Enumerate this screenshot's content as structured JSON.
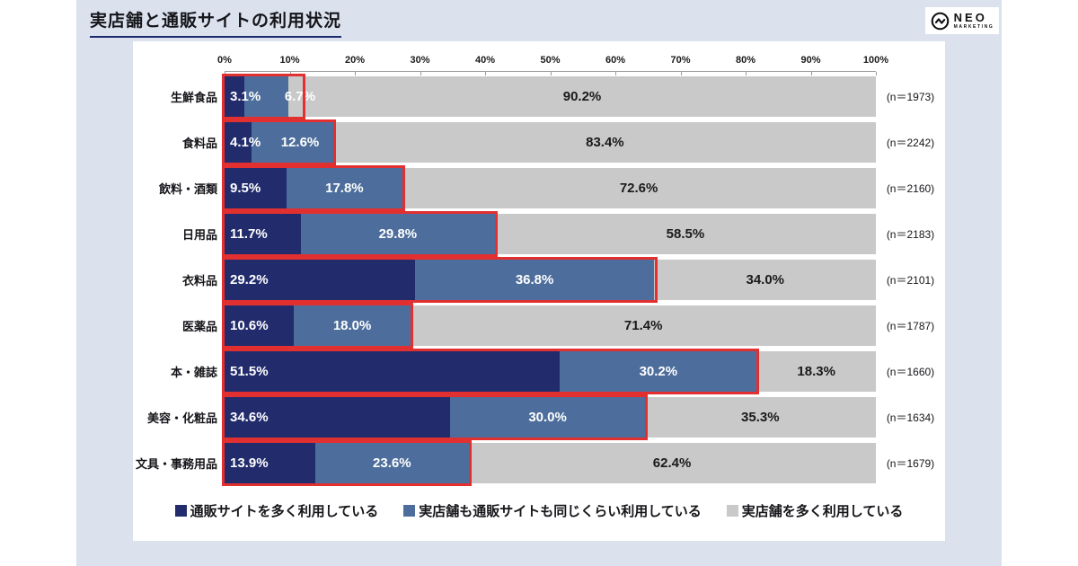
{
  "page": {
    "title": "実店舗と通販サイトの利用状況"
  },
  "logo": {
    "name": "NEO",
    "sub": "MARKETING"
  },
  "colors": {
    "panel_bg": "#dbe2ee",
    "card_bg": "#ffffff",
    "title_underline": "#1e2a6e",
    "highlight_red": "#e23030"
  },
  "chart_data": {
    "type": "bar",
    "stacked": true,
    "orientation": "horizontal",
    "title": "実店舗と通販サイトの利用状況",
    "axis": {
      "min": 0,
      "max": 100,
      "ticks": [
        "0%",
        "10%",
        "20%",
        "30%",
        "40%",
        "50%",
        "60%",
        "70%",
        "80%",
        "90%",
        "100%"
      ]
    },
    "categories": [
      "生鮮食品",
      "食料品",
      "飲料・酒類",
      "日用品",
      "衣料品",
      "医薬品",
      "本・雑誌",
      "美容・化粧品",
      "文具・事務用品"
    ],
    "n_labels": [
      "(n＝1973)",
      "(n＝2242)",
      "(n＝2160)",
      "(n＝2183)",
      "(n＝2101)",
      "(n＝1787)",
      "(n＝1660)",
      "(n＝1634)",
      "(n＝1679)"
    ],
    "series": [
      {
        "name": "通販サイトを多く利用している",
        "color": "#222c6d",
        "values": [
          3.1,
          4.1,
          9.5,
          11.7,
          29.2,
          10.6,
          51.5,
          34.6,
          13.9
        ]
      },
      {
        "name": "実店舗も通販サイトも同じくらい利用している",
        "color": "#4d6e9c",
        "values": [
          6.7,
          12.6,
          17.8,
          29.8,
          36.8,
          18.0,
          30.2,
          30.0,
          23.6
        ]
      },
      {
        "name": "実店舗を多く利用している",
        "color": "#c9c9c9",
        "values": [
          90.2,
          83.4,
          72.6,
          58.5,
          34.0,
          71.4,
          18.3,
          35.3,
          62.4
        ]
      }
    ],
    "legend_position": "bottom",
    "highlight": "red box drawn around the first two segments of every bar"
  }
}
